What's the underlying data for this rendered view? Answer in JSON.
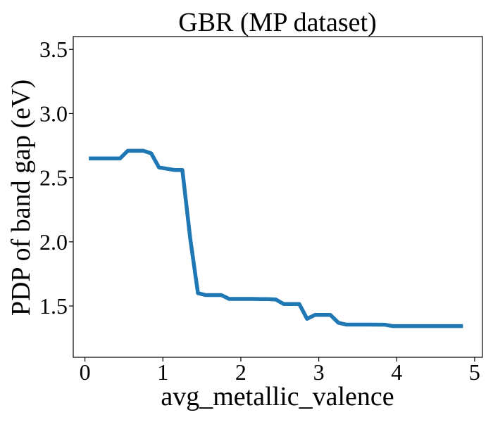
{
  "chart_data": {
    "type": "line",
    "title": "GBR (MP dataset)",
    "xlabel": "avg_metallic_valence",
    "ylabel": "PDP of band gap (eV)",
    "xlim": [
      -0.15,
      5.1
    ],
    "ylim": [
      1.1,
      3.6
    ],
    "xticks": [
      0,
      1,
      2,
      3,
      4,
      5
    ],
    "xtick_labels": [
      "0",
      "1",
      "2",
      "3",
      "4",
      "5"
    ],
    "yticks": [
      1.5,
      2.0,
      2.5,
      3.0,
      3.5
    ],
    "ytick_labels": [
      "1.5",
      "2.0",
      "2.5",
      "3.0",
      "3.5"
    ],
    "grid": false,
    "series": [
      {
        "color": "#1f77b4",
        "x": [
          0.05,
          0.15,
          0.25,
          0.35,
          0.45,
          0.55,
          0.65,
          0.75,
          0.85,
          0.95,
          1.05,
          1.15,
          1.25,
          1.35,
          1.45,
          1.55,
          1.65,
          1.75,
          1.85,
          1.95,
          2.05,
          2.15,
          2.25,
          2.35,
          2.45,
          2.55,
          2.65,
          2.75,
          2.85,
          2.95,
          3.05,
          3.15,
          3.25,
          3.35,
          3.45,
          3.55,
          3.65,
          3.75,
          3.85,
          3.95,
          4.05,
          4.15,
          4.25,
          4.35,
          4.45,
          4.55,
          4.65,
          4.75,
          4.85
        ],
        "y": [
          2.65,
          2.65,
          2.65,
          2.65,
          2.65,
          2.71,
          2.71,
          2.71,
          2.69,
          2.58,
          2.57,
          2.56,
          2.56,
          2.03,
          1.6,
          1.585,
          1.585,
          1.585,
          1.555,
          1.555,
          1.555,
          1.555,
          1.554,
          1.554,
          1.55,
          1.515,
          1.515,
          1.515,
          1.4,
          1.43,
          1.43,
          1.43,
          1.37,
          1.355,
          1.355,
          1.355,
          1.355,
          1.354,
          1.354,
          1.343,
          1.343,
          1.343,
          1.343,
          1.343,
          1.343,
          1.343,
          1.343,
          1.343,
          1.343
        ]
      }
    ]
  }
}
